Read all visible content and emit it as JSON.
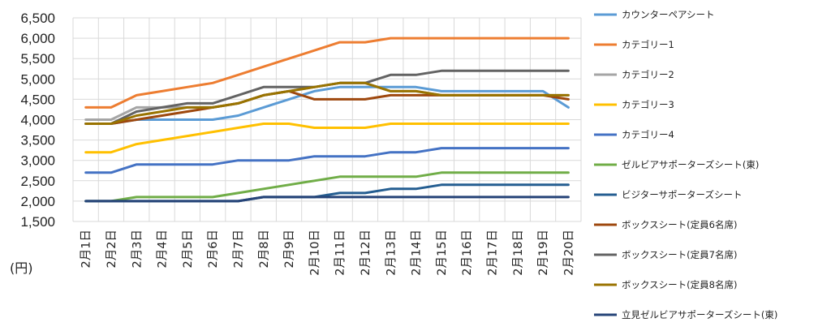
{
  "chart_data": {
    "type": "line",
    "unit_label": "(円)",
    "ylim": [
      1500,
      6500
    ],
    "yticks": [
      "1,500",
      "2,000",
      "2,500",
      "3,000",
      "3,500",
      "4,000",
      "4,500",
      "5,000",
      "5,500",
      "6,000",
      "6,500"
    ],
    "categories": [
      "2月1日",
      "2月2日",
      "2月3日",
      "2月4日",
      "2月5日",
      "2月6日",
      "2月7日",
      "2月8日",
      "2月9日",
      "2月10日",
      "2月11日",
      "2月12日",
      "2月13日",
      "2月14日",
      "2月15日",
      "2月16日",
      "2月17日",
      "2月18日",
      "2月19日",
      "2月20日"
    ],
    "grid": true,
    "legend_position": "right",
    "series": [
      {
        "name": "カウンターペアシート",
        "color": "#5B9BD5",
        "values": [
          3900,
          3900,
          4000,
          4000,
          4000,
          4000,
          4100,
          4300,
          4500,
          4700,
          4800,
          4800,
          4800,
          4800,
          4700,
          4700,
          4700,
          4700,
          4700,
          4300
        ]
      },
      {
        "name": "カテゴリー1",
        "color": "#ED7D31",
        "values": [
          4300,
          4300,
          4600,
          4700,
          4800,
          4900,
          5100,
          5300,
          5500,
          5700,
          5900,
          5900,
          6000,
          6000,
          6000,
          6000,
          6000,
          6000,
          6000,
          6000
        ]
      },
      {
        "name": "カテゴリー2",
        "color": "#A5A5A5",
        "values": [
          4000,
          4000,
          4300,
          4300,
          4300,
          4300,
          4400,
          4600,
          4700,
          4800,
          4900,
          4900,
          4700,
          4700,
          4600,
          4600,
          4600,
          4600,
          4600,
          4600
        ]
      },
      {
        "name": "カテゴリー3",
        "color": "#FFC000",
        "values": [
          3200,
          3200,
          3400,
          3500,
          3600,
          3700,
          3800,
          3900,
          3900,
          3800,
          3800,
          3800,
          3900,
          3900,
          3900,
          3900,
          3900,
          3900,
          3900,
          3900
        ]
      },
      {
        "name": "カテゴリー4",
        "color": "#4472C4",
        "values": [
          2700,
          2700,
          2900,
          2900,
          2900,
          2900,
          3000,
          3000,
          3000,
          3100,
          3100,
          3100,
          3200,
          3200,
          3300,
          3300,
          3300,
          3300,
          3300,
          3300
        ]
      },
      {
        "name": "ゼルビアサポーターズシート(東)",
        "color": "#70AD47",
        "values": [
          2000,
          2000,
          2100,
          2100,
          2100,
          2100,
          2200,
          2300,
          2400,
          2500,
          2600,
          2600,
          2600,
          2600,
          2700,
          2700,
          2700,
          2700,
          2700,
          2700
        ]
      },
      {
        "name": "ビジターサポーターズシート",
        "color": "#255E91",
        "values": [
          2000,
          2000,
          2000,
          2000,
          2000,
          2000,
          2000,
          2100,
          2100,
          2100,
          2200,
          2200,
          2300,
          2300,
          2400,
          2400,
          2400,
          2400,
          2400,
          2400
        ]
      },
      {
        "name": "ボックスシート(定員6名席)",
        "color": "#9E480E",
        "values": [
          3900,
          3900,
          4000,
          4100,
          4200,
          4300,
          4400,
          4600,
          4700,
          4500,
          4500,
          4500,
          4600,
          4600,
          4600,
          4600,
          4600,
          4600,
          4600,
          4500
        ]
      },
      {
        "name": "ボックスシート(定員7名席)",
        "color": "#636363",
        "values": [
          3900,
          3900,
          4200,
          4300,
          4400,
          4400,
          4600,
          4800,
          4800,
          4800,
          4900,
          4900,
          5100,
          5100,
          5200,
          5200,
          5200,
          5200,
          5200,
          5200
        ]
      },
      {
        "name": "ボックスシート(定員8名席)",
        "color": "#997300",
        "values": [
          3900,
          3900,
          4100,
          4200,
          4300,
          4300,
          4400,
          4600,
          4700,
          4800,
          4900,
          4900,
          4700,
          4700,
          4600,
          4600,
          4600,
          4600,
          4600,
          4600
        ]
      },
      {
        "name": "立見ゼルビアサポーターズシート(東)",
        "color": "#264478",
        "values": [
          2000,
          2000,
          2000,
          2000,
          2000,
          2000,
          2000,
          2100,
          2100,
          2100,
          2100,
          2100,
          2100,
          2100,
          2100,
          2100,
          2100,
          2100,
          2100,
          2100
        ]
      }
    ]
  }
}
